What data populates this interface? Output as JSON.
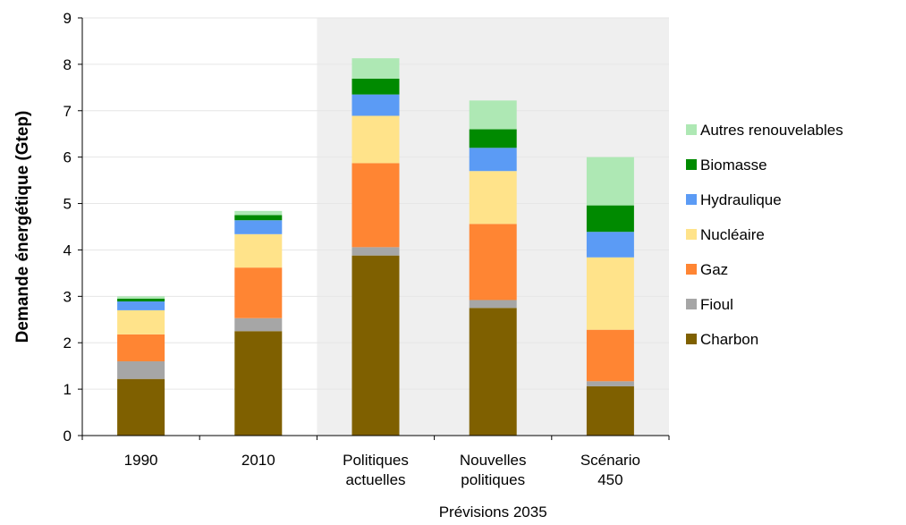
{
  "chart_data": {
    "type": "bar",
    "stacked": true,
    "title": "",
    "ylabel": "Demande énergétique (Gtep)",
    "xlabel": "",
    "ylim": [
      0,
      9
    ],
    "yticks": [
      0,
      1,
      2,
      3,
      4,
      5,
      6,
      7,
      8,
      9
    ],
    "categories": [
      [
        "1990"
      ],
      [
        "2010"
      ],
      [
        "Politiques",
        "actuelles"
      ],
      [
        "Nouvelles",
        "politiques"
      ],
      [
        "Scénario",
        "450"
      ]
    ],
    "annotation": "Prévisions 2035",
    "shaded_region": "forecast",
    "legend_position": "right",
    "series": [
      {
        "name": "Charbon",
        "color": "#7f6000",
        "values": [
          1.22,
          2.25,
          3.88,
          2.75,
          1.06
        ]
      },
      {
        "name": "Fioul",
        "color": "#a6a6a6",
        "values": [
          0.38,
          0.28,
          0.18,
          0.17,
          0.11
        ]
      },
      {
        "name": "Gaz",
        "color": "#ff8533",
        "values": [
          0.58,
          1.09,
          1.81,
          1.64,
          1.11
        ]
      },
      {
        "name": "Nucléaire",
        "color": "#ffe38a",
        "values": [
          0.52,
          0.72,
          1.02,
          1.14,
          1.56
        ]
      },
      {
        "name": "Hydraulique",
        "color": "#5b9bf5",
        "values": [
          0.19,
          0.3,
          0.46,
          0.5,
          0.55
        ]
      },
      {
        "name": "Biomasse",
        "color": "#008a00",
        "values": [
          0.06,
          0.11,
          0.34,
          0.4,
          0.57
        ]
      },
      {
        "name": "Autres renouvelables",
        "color": "#aee8b4",
        "values": [
          0.05,
          0.09,
          0.44,
          0.62,
          1.04
        ]
      }
    ]
  }
}
